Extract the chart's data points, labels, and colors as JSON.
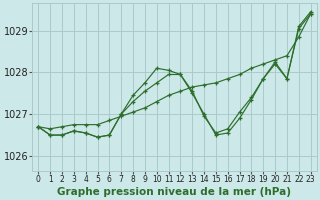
{
  "bg_color": "#cce8e8",
  "grid_color": "#aacaca",
  "line_color": "#2d6e2d",
  "xlim": [
    -0.5,
    23.5
  ],
  "ylim": [
    1025.65,
    1029.65
  ],
  "yticks": [
    1026,
    1027,
    1028,
    1029
  ],
  "xticks": [
    0,
    1,
    2,
    3,
    4,
    5,
    6,
    7,
    8,
    9,
    10,
    11,
    12,
    13,
    14,
    15,
    16,
    17,
    18,
    19,
    20,
    21,
    22,
    23
  ],
  "series": [
    [
      1026.7,
      1026.5,
      1026.5,
      1026.6,
      1026.55,
      1026.45,
      1026.5,
      1027.0,
      1027.3,
      1027.55,
      1027.75,
      1027.95,
      1027.95,
      1027.55,
      1026.95,
      1026.55,
      1026.65,
      1027.05,
      1027.4,
      1027.85,
      1028.2,
      1027.85,
      1029.05,
      1029.4
    ],
    [
      1026.7,
      1026.65,
      1026.7,
      1026.75,
      1026.75,
      1026.75,
      1026.85,
      1026.95,
      1027.05,
      1027.15,
      1027.3,
      1027.45,
      1027.55,
      1027.65,
      1027.7,
      1027.75,
      1027.85,
      1027.95,
      1028.1,
      1028.2,
      1028.3,
      1028.4,
      1028.85,
      1029.4
    ],
    [
      1026.7,
      1026.5,
      1026.5,
      1026.6,
      1026.55,
      1026.45,
      1026.5,
      1027.0,
      1027.45,
      1027.75,
      1028.1,
      1028.05,
      1027.95,
      1027.5,
      1027.0,
      1026.5,
      1026.55,
      1026.9,
      1027.35,
      1027.85,
      1028.25,
      1027.85,
      1029.1,
      1029.45
    ]
  ],
  "xlabel": "Graphe pression niveau de la mer (hPa)",
  "xlabel_color": "#2d6e2d",
  "xlabel_fontsize": 7.5,
  "ytick_fontsize": 7,
  "xtick_fontsize": 5.5
}
